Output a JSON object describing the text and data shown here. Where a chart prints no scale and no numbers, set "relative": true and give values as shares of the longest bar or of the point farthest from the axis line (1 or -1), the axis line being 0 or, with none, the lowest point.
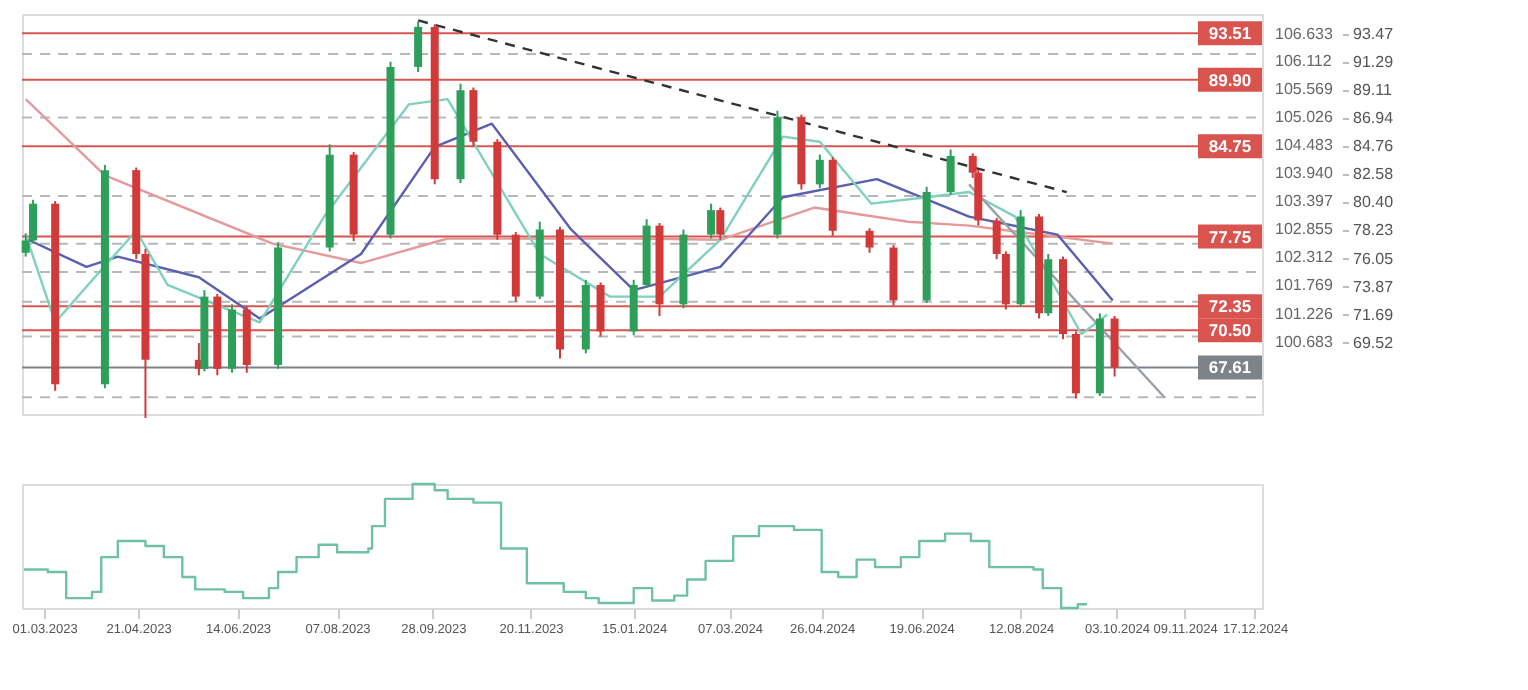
{
  "chart_data": [
    {
      "type": "candlestick",
      "grid": false,
      "tick_labels": "y",
      "x": [
        "2023-02-19",
        "2023-02-23",
        "2023-03-07",
        "2023-04-03",
        "2023-04-20",
        "2023-04-25",
        "2023-05-24",
        "2023-05-27",
        "2023-06-03",
        "2023-06-11",
        "2023-06-19",
        "2023-07-06",
        "2023-08-03",
        "2023-08-16",
        "2023-09-05",
        "2023-09-20",
        "2023-09-29",
        "2023-10-13",
        "2023-10-20",
        "2023-11-02",
        "2023-11-12",
        "2023-11-25",
        "2023-12-06",
        "2023-12-20",
        "2023-12-28",
        "2024-01-15",
        "2024-01-22",
        "2024-01-29",
        "2024-02-11",
        "2024-02-26",
        "2024-03-02",
        "2024-04-02",
        "2024-04-15",
        "2024-04-25",
        "2024-05-02",
        "2024-05-22",
        "2024-06-04",
        "2024-06-22",
        "2024-07-05",
        "2024-07-17",
        "2024-07-20",
        "2024-07-30",
        "2024-08-04",
        "2024-08-12",
        "2024-08-22",
        "2024-08-27",
        "2024-09-04",
        "2024-09-11",
        "2024-09-24",
        "2024-10-02"
      ],
      "ohlc": [
        [
          76.5,
          78.0,
          76.2,
          77.45
        ],
        [
          77.45,
          80.6,
          77.2,
          80.3
        ],
        [
          80.3,
          80.5,
          65.8,
          66.3
        ],
        [
          66.3,
          83.3,
          66.0,
          82.9
        ],
        [
          82.9,
          83.1,
          76.0,
          76.4
        ],
        [
          76.4,
          76.8,
          63.7,
          68.2
        ],
        [
          68.2,
          69.5,
          67.0,
          67.5
        ],
        [
          67.5,
          73.6,
          67.3,
          73.1
        ],
        [
          73.1,
          73.3,
          67.0,
          67.5
        ],
        [
          67.5,
          72.5,
          67.2,
          72.1
        ],
        [
          72.1,
          72.3,
          67.2,
          67.8
        ],
        [
          67.8,
          77.3,
          67.5,
          76.9
        ],
        [
          76.9,
          84.9,
          76.6,
          84.1
        ],
        [
          84.1,
          84.3,
          77.4,
          77.9
        ],
        [
          77.9,
          91.3,
          77.6,
          90.9
        ],
        [
          90.9,
          94.4,
          90.5,
          94.0
        ],
        [
          94.0,
          94.2,
          81.8,
          82.2
        ],
        [
          82.2,
          89.6,
          81.9,
          89.1
        ],
        [
          89.1,
          89.3,
          84.7,
          85.1
        ],
        [
          85.1,
          85.3,
          77.5,
          77.9
        ],
        [
          77.9,
          78.1,
          72.7,
          73.1
        ],
        [
          73.1,
          78.9,
          72.9,
          78.3
        ],
        [
          78.3,
          78.5,
          68.3,
          69.0
        ],
        [
          69.0,
          74.4,
          68.7,
          74.0
        ],
        [
          74.0,
          74.2,
          70.0,
          70.4
        ],
        [
          70.4,
          74.4,
          70.1,
          74.0
        ],
        [
          74.0,
          79.1,
          73.8,
          78.6
        ],
        [
          78.6,
          78.8,
          71.6,
          72.5
        ],
        [
          72.5,
          78.3,
          72.2,
          77.9
        ],
        [
          77.9,
          80.3,
          77.6,
          79.8
        ],
        [
          79.8,
          80.0,
          77.5,
          77.9
        ],
        [
          77.9,
          87.5,
          77.6,
          87.0
        ],
        [
          87.0,
          87.2,
          81.4,
          81.8
        ],
        [
          81.8,
          84.1,
          81.5,
          83.7
        ],
        [
          83.7,
          83.9,
          77.8,
          78.2
        ],
        [
          78.2,
          78.4,
          76.5,
          76.9
        ],
        [
          76.9,
          77.1,
          72.4,
          72.8
        ],
        [
          72.8,
          81.6,
          72.6,
          81.2
        ],
        [
          81.2,
          84.5,
          81.0,
          84.0
        ],
        [
          84.0,
          84.2,
          82.3,
          82.7
        ],
        [
          82.7,
          82.9,
          78.6,
          79.0
        ],
        [
          79.0,
          79.2,
          76.0,
          76.4
        ],
        [
          76.4,
          76.6,
          72.1,
          72.5
        ],
        [
          72.5,
          79.8,
          72.3,
          79.3
        ],
        [
          79.3,
          79.5,
          71.4,
          71.8
        ],
        [
          71.8,
          76.4,
          71.6,
          76.0
        ],
        [
          76.0,
          76.2,
          69.8,
          70.2
        ],
        [
          70.2,
          70.4,
          65.2,
          65.6
        ],
        [
          65.6,
          71.8,
          65.4,
          71.4
        ],
        [
          71.4,
          71.6,
          66.9,
          67.6
        ]
      ],
      "colors": [
        "#2e9e5b",
        "#2e9e5b",
        "#d23a3a",
        "#2e9e5b",
        "#d23a3a",
        "#d23a3a",
        "#d23a3a",
        "#2e9e5b",
        "#d23a3a",
        "#2e9e5b",
        "#d23a3a",
        "#2e9e5b",
        "#2e9e5b",
        "#d23a3a",
        "#2e9e5b",
        "#2e9e5b",
        "#d23a3a",
        "#2e9e5b",
        "#d23a3a",
        "#d23a3a",
        "#d23a3a",
        "#2e9e5b",
        "#d23a3a",
        "#2e9e5b",
        "#d23a3a",
        "#2e9e5b",
        "#2e9e5b",
        "#d23a3a",
        "#2e9e5b",
        "#2e9e5b",
        "#d23a3a",
        "#2e9e5b",
        "#d23a3a",
        "#2e9e5b",
        "#d23a3a",
        "#d23a3a",
        "#d23a3a",
        "#2e9e5b",
        "#2e9e5b",
        "#d23a3a",
        "#d23a3a",
        "#d23a3a",
        "#d23a3a",
        "#2e9e5b",
        "#d23a3a",
        "#2e9e5b",
        "#d23a3a",
        "#d23a3a",
        "#2e9e5b",
        "#d23a3a"
      ],
      "series": [
        {
          "type": "line",
          "color": "#e49a9a",
          "line_style": "solid",
          "x": [
            "2023-02-19",
            "2023-04-03",
            "2023-07-03",
            "2023-08-20",
            "2023-10-06",
            "2024-01-15",
            "2024-03-02",
            "2024-04-22",
            "2024-06-12",
            "2024-07-15",
            "2024-10-01"
          ],
          "values": [
            88.4,
            82.5,
            77.2,
            75.7,
            77.6,
            77.6,
            77.5,
            80.0,
            78.9,
            78.6,
            77.2
          ]
        },
        {
          "type": "line",
          "color": "#5a5fb0",
          "line_style": "solid",
          "x": [
            "2023-02-19",
            "2023-03-24",
            "2023-04-10",
            "2023-05-24",
            "2023-06-26",
            "2023-08-20",
            "2023-09-29",
            "2023-10-30",
            "2023-12-12",
            "2024-01-15",
            "2024-03-02",
            "2024-04-05",
            "2024-05-26",
            "2024-07-15",
            "2024-09-01",
            "2024-10-01"
          ],
          "values": [
            77.6,
            75.4,
            76.2,
            74.6,
            71.4,
            76.4,
            84.7,
            86.5,
            78.3,
            73.6,
            75.4,
            80.8,
            82.2,
            79.3,
            77.9,
            72.8
          ]
        },
        {
          "type": "line",
          "color": "#7fd1bf",
          "line_style": "solid",
          "x": [
            "2023-02-19",
            "2023-03-07",
            "2023-03-31",
            "2023-04-20",
            "2023-05-07",
            "2023-06-26",
            "2023-07-31",
            "2023-09-15",
            "2023-10-06",
            "2023-11-25",
            "2024-01-02",
            "2024-01-29",
            "2024-03-02",
            "2024-04-05",
            "2024-04-25",
            "2024-05-23",
            "2024-06-22",
            "2024-07-15",
            "2024-08-09",
            "2024-09-14",
            "2024-09-28"
          ],
          "values": [
            77.9,
            71.1,
            75.0,
            78.2,
            74.0,
            71.1,
            79.3,
            88.0,
            88.4,
            76.4,
            73.1,
            73.1,
            77.5,
            85.5,
            85.1,
            80.3,
            80.8,
            81.2,
            79.3,
            70.2,
            71.7
          ]
        },
        {
          "type": "line",
          "color": "#333333",
          "line_style": "dashed",
          "x": [
            "2023-09-20",
            "2024-09-06"
          ],
          "values": [
            94.5,
            81.2
          ]
        },
        {
          "type": "line",
          "color": "#9aa0a6",
          "line_style": "solid",
          "x": [
            "2024-07-15",
            "2024-10-29"
          ],
          "values": [
            81.8,
            65.3
          ]
        }
      ],
      "ref_lines": [
        {
          "axis": "y",
          "value": 91.9,
          "color": "#b5b9bd",
          "line_style": "dashed"
        },
        {
          "axis": "y",
          "value": 86.98,
          "color": "#b5b9bd",
          "line_style": "dashed"
        },
        {
          "axis": "y",
          "value": 80.9,
          "color": "#b5b9bd",
          "line_style": "dashed"
        },
        {
          "axis": "y",
          "value": 77.2,
          "color": "#b5b9bd",
          "line_style": "dashed"
        },
        {
          "axis": "y",
          "value": 75.0,
          "color": "#b5b9bd",
          "line_style": "dashed"
        },
        {
          "axis": "y",
          "value": 72.7,
          "color": "#b5b9bd",
          "line_style": "dashed"
        },
        {
          "axis": "y",
          "value": 70.0,
          "color": "#b5b9bd",
          "line_style": "dashed"
        },
        {
          "axis": "y",
          "value": 65.3,
          "color": "#b5b9bd",
          "line_style": "dashed"
        },
        {
          "axis": "y",
          "value": 93.51,
          "label": "93.51",
          "color": "#d9534f",
          "line_style": "solid"
        },
        {
          "axis": "y",
          "value": 89.9,
          "label": "89.90",
          "color": "#d9534f",
          "line_style": "solid"
        },
        {
          "axis": "y",
          "value": 84.75,
          "label": "84.75",
          "color": "#d9534f",
          "line_style": "solid"
        },
        {
          "axis": "y",
          "value": 77.75,
          "label": "77.75",
          "color": "#d9534f",
          "line_style": "solid"
        },
        {
          "axis": "y",
          "value": 72.35,
          "label": "72.35",
          "color": "#d9534f",
          "line_style": "solid"
        },
        {
          "axis": "y",
          "value": 70.5,
          "label": "70.50",
          "color": "#d9534f",
          "line_style": "solid"
        },
        {
          "axis": "y",
          "value": 67.61,
          "label": "67.61",
          "color": "#7d8388",
          "line_style": "solid"
        }
      ],
      "xlim": [
        "2023-02-17",
        "2024-12-21"
      ],
      "ylim": [
        64.0,
        95.0
      ],
      "yticks": [
        93.47,
        91.29,
        89.11,
        86.94,
        84.76,
        82.58,
        {
          "value": 80.4,
          "label": "80.40"
        },
        78.23,
        76.05,
        73.87,
        71.69,
        69.52
      ],
      "y2lim": [
        99.286,
        107.014
      ],
      "y2ticks": [
        106.633,
        106.112,
        105.569,
        105.026,
        104.483,
        {
          "value": 103.94,
          "label": "103.940"
        },
        103.397,
        102.855,
        102.312,
        101.769,
        101.226,
        100.683
      ]
    },
    {
      "type": "step",
      "relative": true,
      "tick_labels": "x",
      "color": "#6fc0a8",
      "x": [
        "2023-02-18",
        "2023-03-03",
        "2023-03-13",
        "2023-03-27",
        "2023-04-01",
        "2023-04-10",
        "2023-04-25",
        "2023-05-05",
        "2023-05-15",
        "2023-05-22",
        "2023-06-07",
        "2023-06-17",
        "2023-07-01",
        "2023-07-06",
        "2023-07-16",
        "2023-07-28",
        "2023-08-07",
        "2023-08-24",
        "2023-08-26",
        "2023-09-02",
        "2023-09-17",
        "2023-09-29",
        "2023-10-06",
        "2023-10-20",
        "2023-11-04",
        "2023-11-18",
        "2023-12-08",
        "2023-12-20",
        "2023-12-27",
        "2024-01-15",
        "2024-01-25",
        "2024-02-06",
        "2024-02-13",
        "2024-02-23",
        "2024-03-09",
        "2024-03-23",
        "2024-04-11",
        "2024-04-26",
        "2024-05-05",
        "2024-05-15",
        "2024-05-25",
        "2024-06-08",
        "2024-06-18",
        "2024-07-02",
        "2024-07-16",
        "2024-07-26",
        "2024-08-19",
        "2024-08-24",
        "2024-09-03",
        "2024-09-12",
        "2024-09-17"
      ],
      "values": [
        0.31,
        0.29,
        0.08,
        0.13,
        0.41,
        0.54,
        0.5,
        0.41,
        0.25,
        0.15,
        0.13,
        0.08,
        0.16,
        0.29,
        0.41,
        0.51,
        0.45,
        0.48,
        0.66,
        0.88,
        1.0,
        0.95,
        0.88,
        0.85,
        0.48,
        0.2,
        0.13,
        0.08,
        0.04,
        0.16,
        0.06,
        0.1,
        0.23,
        0.38,
        0.58,
        0.66,
        0.63,
        0.29,
        0.25,
        0.39,
        0.33,
        0.41,
        0.54,
        0.6,
        0.54,
        0.33,
        0.31,
        0.16,
        0,
        0.03,
        0.03
      ],
      "xlim": [
        "2023-02-17",
        "2024-12-21"
      ],
      "xticks": [
        {
          "value": "2023-03-01",
          "label": "01.03.2023"
        },
        {
          "value": "2023-04-21",
          "label": "21.04.2023"
        },
        {
          "value": "2023-06-14",
          "label": "14.06.2023"
        },
        {
          "value": "2023-08-07",
          "label": "07.08.2023"
        },
        {
          "value": "2023-09-28",
          "label": "28.09.2023"
        },
        {
          "value": "2023-11-20",
          "label": "20.11.2023"
        },
        {
          "value": "2024-01-15",
          "label": "15.01.2024"
        },
        {
          "value": "2024-03-07",
          "label": "07.03.2024"
        },
        {
          "value": "2024-04-26",
          "label": "26.04.2024"
        },
        {
          "value": "2024-06-19",
          "label": "19.06.2024"
        },
        {
          "value": "2024-08-12",
          "label": "12.08.2024"
        },
        {
          "value": "2024-10-03",
          "label": "03.10.2024"
        },
        {
          "value": "2024-11-09",
          "label": "09.11.2024"
        },
        {
          "value": "2024-12-17",
          "label": "17.12.2024"
        }
      ]
    }
  ]
}
